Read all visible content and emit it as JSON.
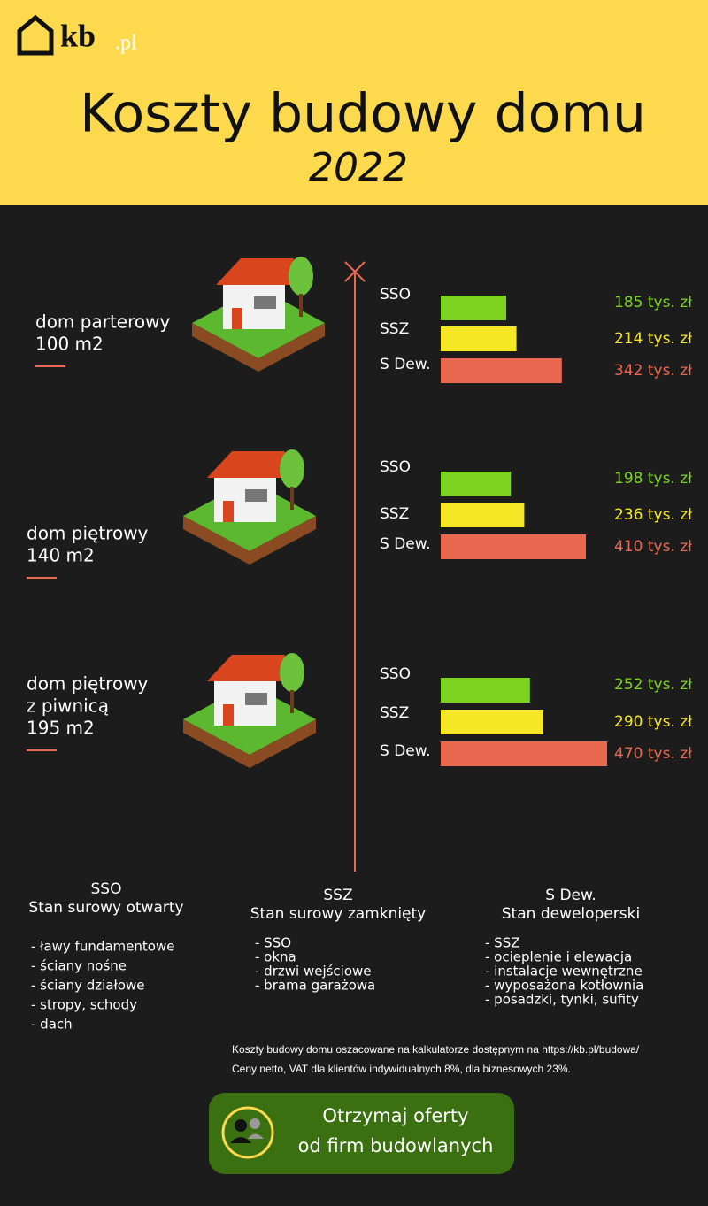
{
  "header": {
    "logo": "kb",
    "logo_suffix": ".pl",
    "title": "Koszty budowy domu",
    "year": "2022"
  },
  "groups": [
    {
      "label": [
        "dom parterowy",
        "100 m2"
      ],
      "bars": [
        {
          "name": "SSO",
          "value": 185,
          "value_label": "185 tys. zł",
          "color": "#7ed321"
        },
        {
          "name": "SSZ",
          "value": 214,
          "value_label": "214 tys. zł",
          "color": "#f5e726"
        },
        {
          "name": "S Dew.",
          "value": 342,
          "value_label": "342 tys. zł",
          "color": "#e8694f"
        }
      ]
    },
    {
      "label": [
        "dom piętrowy",
        "140 m2"
      ],
      "bars": [
        {
          "name": "SSO",
          "value": 198,
          "value_label": "198 tys. zł",
          "color": "#7ed321"
        },
        {
          "name": "SSZ",
          "value": 236,
          "value_label": "236 tys. zł",
          "color": "#f5e726"
        },
        {
          "name": "S Dew.",
          "value": 410,
          "value_label": "410 tys. zł",
          "color": "#e8694f"
        }
      ]
    },
    {
      "label": [
        "dom piętrowy",
        "z piwnicą",
        "195 m2"
      ],
      "bars": [
        {
          "name": "SSO",
          "value": 252,
          "value_label": "252 tys. zł",
          "color": "#7ed321"
        },
        {
          "name": "SSZ",
          "value": 290,
          "value_label": "290 tys. zł",
          "color": "#f5e726"
        },
        {
          "name": "S Dew.",
          "value": 470,
          "value_label": "470 tys. zł",
          "color": "#e8694f"
        }
      ]
    }
  ],
  "legend": [
    {
      "code": "SSO",
      "name": "Stan surowy otwarty",
      "items": [
        "- ławy fundamentowe",
        "- ściany nośne",
        "- ściany działowe",
        "- stropy, schody",
        "- dach"
      ]
    },
    {
      "code": "SSZ",
      "name": "Stan surowy zamknięty",
      "items": [
        "- SSO",
        "- okna",
        "- drzwi wejściowe",
        "- brama garażowa"
      ]
    },
    {
      "code": "S Dew.",
      "name": "Stan deweloperski",
      "items": [
        "- SSZ",
        "- ocieplenie i elewacja",
        "- instalacje wewnętrzne",
        "- wyposażona kotłownia",
        "- posadzki, tynki, sufity"
      ]
    }
  ],
  "notes": [
    "Koszty budowy domu oszacowane na kalkulatorze dostępnym na https://kb.pl/budowa/",
    "Ceny netto, VAT dla klientów indywidualnych 8%, dla biznesowych 23%."
  ],
  "button": [
    "Otrzymaj oferty",
    "od firm budowlanych"
  ]
}
